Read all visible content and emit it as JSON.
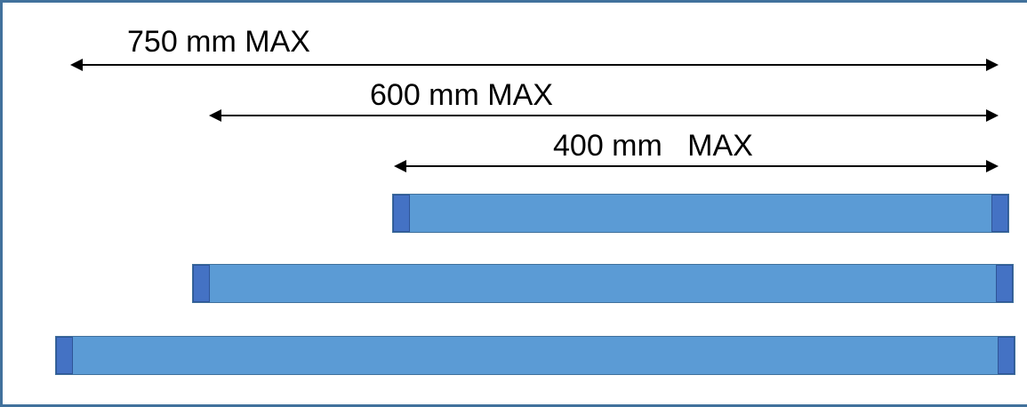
{
  "dimensions": [
    {
      "id": "750",
      "label": "750 mm MAX"
    },
    {
      "id": "600",
      "label": "600 mm MAX"
    },
    {
      "id": "400",
      "label": "400 mm   MAX"
    }
  ],
  "bars": [
    {
      "id": "400",
      "length_mm": 400
    },
    {
      "id": "600",
      "length_mm": 600
    },
    {
      "id": "750",
      "length_mm": 750
    }
  ],
  "colors": {
    "frame": "#41719c",
    "bar_fill": "#5b9bd5",
    "end_cap": "#4472c4",
    "dimension_line": "#000000"
  }
}
